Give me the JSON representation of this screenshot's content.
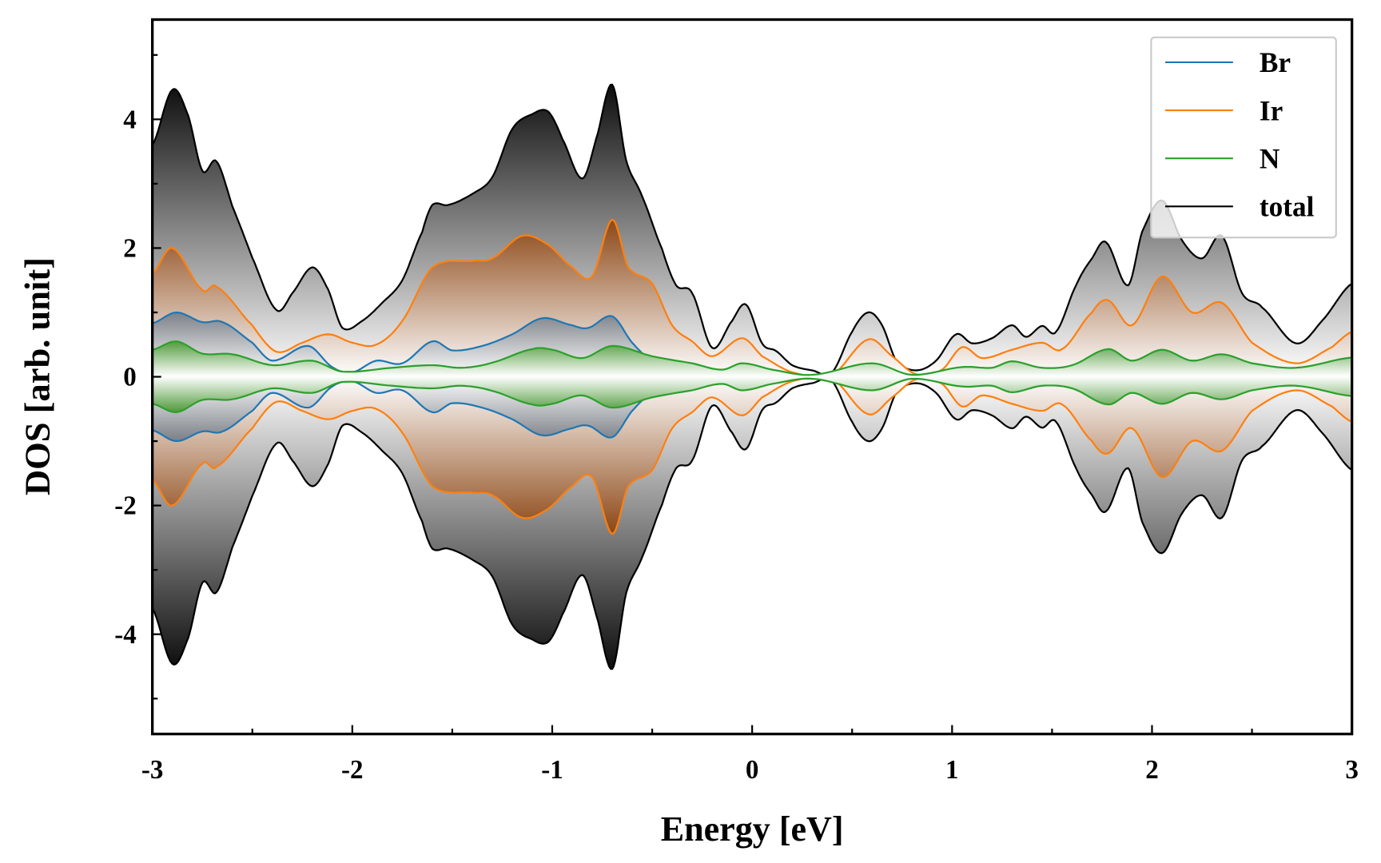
{
  "chart_data": {
    "type": "area",
    "title": "",
    "xlabel": "Energy [eV]",
    "ylabel": "DOS [arb. unit]",
    "xlim": [
      -3,
      3
    ],
    "ylim": [
      -5.55,
      5.55
    ],
    "xticks": [
      -3,
      -2,
      -1,
      0,
      1,
      2,
      3
    ],
    "xtick_labels": [
      "-3",
      "-2",
      "-1",
      "0",
      "1",
      "2",
      "3"
    ],
    "yticks": [
      -4,
      -2,
      0,
      2,
      4
    ],
    "ytick_labels": [
      "-4",
      "-2",
      "0",
      "2",
      "4"
    ],
    "grid": false,
    "mirrored_about_zero": true,
    "legend_placement": "top-right",
    "series": [
      {
        "name": "total",
        "color": "#000000",
        "fill": "gray-gradient",
        "x": [
          -3,
          -2.9,
          -2.82,
          -2.75,
          -2.68,
          -2.6,
          -2.5,
          -2.38,
          -2.3,
          -2.2,
          -2.12,
          -2.05,
          -1.95,
          -1.85,
          -1.75,
          -1.65,
          -1.6,
          -1.52,
          -1.4,
          -1.3,
          -1.2,
          -1.1,
          -1.02,
          -0.95,
          -0.85,
          -0.78,
          -0.7,
          -0.63,
          -0.55,
          -0.45,
          -0.38,
          -0.3,
          -0.2,
          -0.1,
          -0.03,
          0.05,
          0.12,
          0.2,
          0.3,
          0.4,
          0.5,
          0.58,
          0.65,
          0.72,
          0.82,
          0.92,
          1.02,
          1.1,
          1.2,
          1.3,
          1.37,
          1.45,
          1.52,
          1.62,
          1.7,
          1.77,
          1.88,
          1.95,
          2.05,
          2.15,
          2.25,
          2.35,
          2.45,
          2.55,
          2.72,
          2.85,
          3
        ],
        "y": [
          3.6,
          4.46,
          4.05,
          3.2,
          3.35,
          2.65,
          1.85,
          1.04,
          1.3,
          1.7,
          1.35,
          0.76,
          0.87,
          1.15,
          1.5,
          2.25,
          2.67,
          2.67,
          2.84,
          3.1,
          3.85,
          4.08,
          4.12,
          3.7,
          3.08,
          3.7,
          4.54,
          3.36,
          2.8,
          1.98,
          1.42,
          1.3,
          0.45,
          0.87,
          1.12,
          0.52,
          0.4,
          0.18,
          0.1,
          0.07,
          0.7,
          1.0,
          0.8,
          0.25,
          0.1,
          0.25,
          0.66,
          0.52,
          0.6,
          0.8,
          0.62,
          0.79,
          0.7,
          1.42,
          1.84,
          2.09,
          1.42,
          2.25,
          2.74,
          2.12,
          1.84,
          2.19,
          1.3,
          1.08,
          0.52,
          0.87,
          1.45
        ]
      },
      {
        "name": "Ir",
        "color": "#ff7f0e",
        "fill": "brown-gradient",
        "x": [
          -3,
          -2.9,
          -2.75,
          -2.68,
          -2.5,
          -2.38,
          -2.25,
          -2.12,
          -2.0,
          -1.88,
          -1.75,
          -1.6,
          -1.4,
          -1.3,
          -1.15,
          -1.02,
          -0.9,
          -0.8,
          -0.7,
          -0.62,
          -0.5,
          -0.4,
          -0.3,
          -0.2,
          -0.05,
          0.05,
          0.2,
          0.4,
          0.58,
          0.7,
          0.82,
          0.95,
          1.05,
          1.15,
          1.3,
          1.45,
          1.55,
          1.7,
          1.78,
          1.9,
          2.05,
          2.2,
          2.35,
          2.5,
          2.72,
          2.9,
          3
        ],
        "y": [
          1.6,
          2.0,
          1.35,
          1.4,
          0.8,
          0.39,
          0.53,
          0.66,
          0.53,
          0.5,
          0.87,
          1.7,
          1.8,
          1.84,
          2.19,
          2.05,
          1.7,
          1.56,
          2.44,
          1.7,
          1.45,
          0.8,
          0.55,
          0.32,
          0.6,
          0.32,
          0.07,
          0.03,
          0.58,
          0.32,
          0.04,
          0.11,
          0.46,
          0.29,
          0.42,
          0.53,
          0.43,
          1.0,
          1.19,
          0.8,
          1.56,
          1.0,
          1.15,
          0.53,
          0.21,
          0.46,
          0.7
        ]
      },
      {
        "name": "Br",
        "color": "#1f77b4",
        "fill": "slate",
        "x": [
          -3,
          -2.88,
          -2.75,
          -2.65,
          -2.5,
          -2.4,
          -2.22,
          -2.1,
          -2.0,
          -1.88,
          -1.75,
          -1.6,
          -1.5,
          -1.35,
          -1.2,
          -1.05,
          -0.9,
          -0.82,
          -0.7,
          -0.6,
          -0.5,
          -0.35,
          -0.2,
          -0.05,
          0.1,
          0.3,
          0.6,
          0.8,
          1.0,
          1.3,
          1.6,
          1.8,
          1.9,
          2.05,
          2.2,
          2.35,
          2.5,
          2.72,
          3
        ],
        "y": [
          0.83,
          1.0,
          0.85,
          0.85,
          0.53,
          0.25,
          0.48,
          0.15,
          0.07,
          0.25,
          0.21,
          0.55,
          0.41,
          0.48,
          0.66,
          0.91,
          0.8,
          0.76,
          0.94,
          0.53,
          0.25,
          0.21,
          0.07,
          0.14,
          0.04,
          0.01,
          0.1,
          0.01,
          0.07,
          0.07,
          0.07,
          0.18,
          0.14,
          0.28,
          0.25,
          0.28,
          0.18,
          0.07,
          0.16
        ]
      },
      {
        "name": "N",
        "color": "#2ca02c",
        "fill": "green-gradient",
        "x": [
          -3,
          -2.88,
          -2.75,
          -2.6,
          -2.4,
          -2.2,
          -2.05,
          -1.8,
          -1.6,
          -1.45,
          -1.3,
          -1.1,
          -1.0,
          -0.85,
          -0.7,
          -0.5,
          -0.3,
          -0.15,
          -0.05,
          0.1,
          0.3,
          0.6,
          0.8,
          1.05,
          1.2,
          1.3,
          1.45,
          1.6,
          1.78,
          1.9,
          2.05,
          2.2,
          2.35,
          2.5,
          2.72,
          3
        ],
        "y": [
          0.42,
          0.55,
          0.36,
          0.35,
          0.18,
          0.25,
          0.08,
          0.14,
          0.18,
          0.14,
          0.22,
          0.43,
          0.42,
          0.29,
          0.48,
          0.32,
          0.21,
          0.11,
          0.21,
          0.11,
          0.03,
          0.21,
          0.03,
          0.15,
          0.14,
          0.24,
          0.14,
          0.18,
          0.43,
          0.25,
          0.42,
          0.25,
          0.35,
          0.21,
          0.14,
          0.3
        ]
      }
    ],
    "legend": [
      "Br",
      "Ir",
      "N",
      "total"
    ]
  }
}
